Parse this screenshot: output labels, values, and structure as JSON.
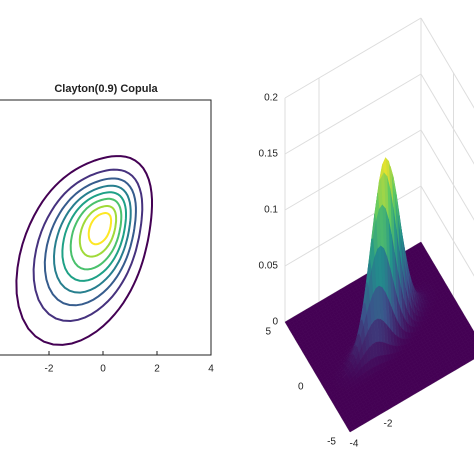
{
  "chart_data": [
    {
      "type": "contour",
      "title": "Clayton(0.9) Copula",
      "xlim": [
        -4,
        4
      ],
      "xticks": [
        -2,
        0,
        2,
        4
      ],
      "ylim": [
        -4,
        4
      ],
      "levels": [
        0.015,
        0.035,
        0.055,
        0.075,
        0.095,
        0.115,
        0.135,
        0.15
      ],
      "colors": [
        "#440154",
        "#46327e",
        "#365c8d",
        "#277f8e",
        "#1fa187",
        "#4ac16d",
        "#a0da39",
        "#fde725"
      ]
    },
    {
      "type": "surface",
      "xlim": [
        -5,
        5
      ],
      "xticks": [
        -5,
        0,
        5
      ],
      "ylim": [
        -4,
        4
      ],
      "yticks": [
        -4,
        -2
      ],
      "zlim": [
        0,
        0.2
      ],
      "zticks": [
        0,
        0.05,
        0.1,
        0.15,
        0.2
      ],
      "zmax": 0.16,
      "colors": [
        "#440154",
        "#3b528b",
        "#21918c",
        "#5ec962",
        "#fde725"
      ]
    }
  ]
}
